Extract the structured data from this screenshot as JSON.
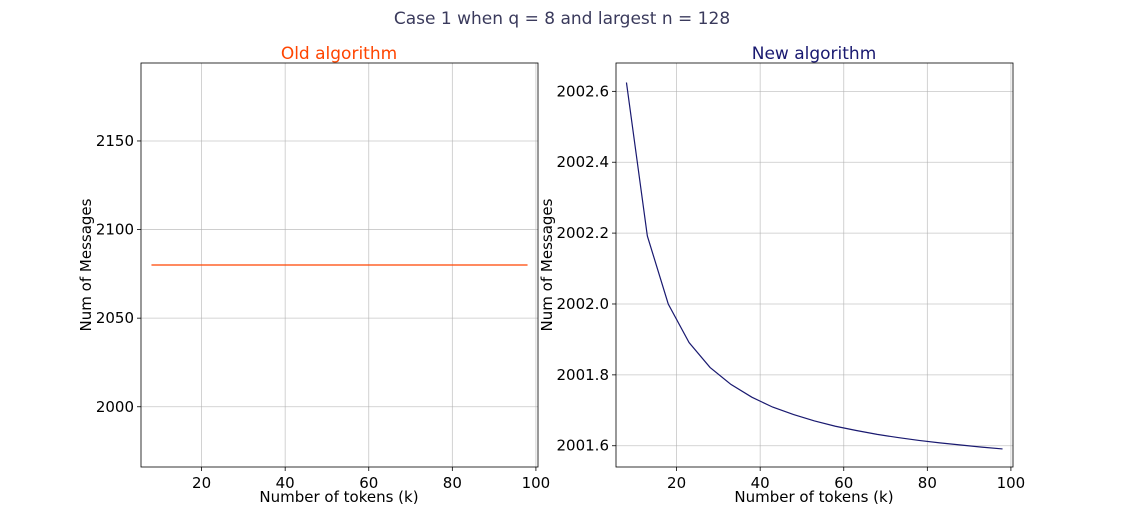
{
  "figure": {
    "suptitle": "Case 1 when q = 8 and largest n = 128"
  },
  "chart_data": [
    {
      "type": "line",
      "title": "Old algorithm",
      "title_color": "#ff4500",
      "xlabel": "Number of tokens (k)",
      "ylabel": "Num of Messages",
      "xlim": [
        5.5,
        100.5
      ],
      "ylim": [
        1966,
        2194
      ],
      "xticks": [
        20,
        40,
        60,
        80,
        100
      ],
      "xtick_labels": [
        "20",
        "40",
        "60",
        "80",
        "100"
      ],
      "yticks": [
        2000,
        2050,
        2100,
        2150
      ],
      "ytick_labels": [
        "2000",
        "2050",
        "2100",
        "2150"
      ],
      "grid": true,
      "series": [
        {
          "color": "#ff4500",
          "x": [
            8,
            13,
            18,
            23,
            28,
            33,
            38,
            43,
            48,
            53,
            58,
            63,
            68,
            73,
            78,
            83,
            88,
            93,
            98
          ],
          "y": [
            2080,
            2080,
            2080,
            2080,
            2080,
            2080,
            2080,
            2080,
            2080,
            2080,
            2080,
            2080,
            2080,
            2080,
            2080,
            2080,
            2080,
            2080,
            2080
          ]
        }
      ]
    },
    {
      "type": "line",
      "title": "New algorithm",
      "title_color": "#191970",
      "xlabel": "Number of tokens (k)",
      "ylabel": "Num of Messages",
      "xlim": [
        5.5,
        100.5
      ],
      "ylim": [
        2001.54,
        2002.68
      ],
      "xticks": [
        20,
        40,
        60,
        80,
        100
      ],
      "xtick_labels": [
        "20",
        "40",
        "60",
        "80",
        "100"
      ],
      "yticks": [
        2001.6,
        2001.8,
        2002.0,
        2002.2,
        2002.4,
        2002.6
      ],
      "ytick_labels": [
        "2001.6",
        "2001.8",
        "2002.0",
        "2002.2",
        "2002.4",
        "2002.6"
      ],
      "grid": true,
      "series": [
        {
          "color": "#191970",
          "x": [
            8,
            13,
            18,
            23,
            28,
            33,
            38,
            43,
            48,
            53,
            58,
            63,
            68,
            73,
            78,
            83,
            88,
            93,
            98
          ],
          "y": [
            2002.625,
            2002.192,
            2002.0,
            2001.891,
            2001.821,
            2001.773,
            2001.737,
            2001.709,
            2001.688,
            2001.67,
            2001.655,
            2001.643,
            2001.632,
            2001.623,
            2001.615,
            2001.608,
            2001.602,
            2001.596,
            2001.591
          ]
        }
      ]
    }
  ]
}
